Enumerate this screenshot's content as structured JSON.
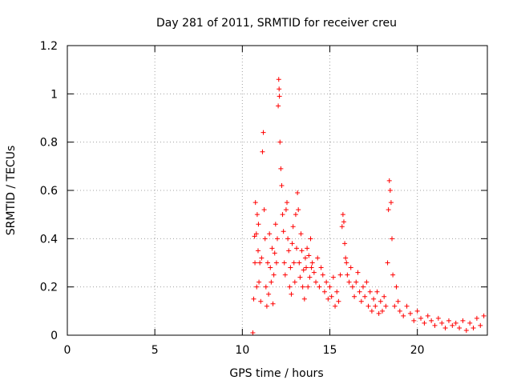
{
  "chart_data": {
    "type": "scatter",
    "title": "Day 281 of 2011, SRMTID for receiver creu",
    "xlabel": "GPS time / hours",
    "ylabel": "SRMTID / TECUs",
    "xlim": [
      0,
      24
    ],
    "ylim": [
      0,
      1.2
    ],
    "xticks": [
      0,
      5,
      10,
      15,
      20
    ],
    "xtick_labels": [
      "0",
      "5",
      "10",
      "15",
      "20"
    ],
    "yticks": [
      0,
      0.2,
      0.4,
      0.6,
      0.8,
      1,
      1.2
    ],
    "ytick_labels": [
      "0",
      "0.2",
      "0.4",
      "0.6",
      "0.8",
      "1",
      "1.2"
    ],
    "grid": true,
    "marker": "+",
    "series": [
      {
        "name": "SRMTID",
        "color": "#ff0000",
        "x": [
          10.6,
          10.65,
          10.7,
          10.72,
          10.75,
          10.8,
          10.82,
          10.85,
          10.9,
          10.92,
          10.95,
          11.0,
          11.05,
          11.1,
          11.15,
          11.2,
          11.25,
          11.3,
          11.35,
          11.4,
          11.45,
          11.5,
          11.55,
          11.6,
          11.65,
          11.7,
          11.75,
          11.8,
          11.85,
          11.9,
          11.95,
          12.0,
          12.05,
          12.08,
          12.1,
          12.12,
          12.15,
          12.2,
          12.25,
          12.3,
          12.35,
          12.4,
          12.45,
          12.5,
          12.55,
          12.6,
          12.65,
          12.7,
          12.75,
          12.8,
          12.85,
          12.9,
          12.95,
          13.0,
          13.05,
          13.1,
          13.15,
          13.2,
          13.25,
          13.3,
          13.35,
          13.4,
          13.45,
          13.5,
          13.55,
          13.6,
          13.65,
          13.7,
          13.75,
          13.8,
          13.85,
          13.9,
          13.95,
          14.0,
          14.1,
          14.2,
          14.3,
          14.4,
          14.5,
          14.6,
          14.7,
          14.8,
          14.9,
          15.0,
          15.1,
          15.2,
          15.3,
          15.4,
          15.5,
          15.6,
          15.7,
          15.75,
          15.8,
          15.85,
          15.9,
          15.95,
          16.0,
          16.1,
          16.2,
          16.3,
          16.4,
          16.5,
          16.6,
          16.7,
          16.8,
          16.9,
          17.0,
          17.1,
          17.2,
          17.3,
          17.4,
          17.5,
          17.6,
          17.7,
          17.8,
          17.9,
          18.0,
          18.1,
          18.2,
          18.3,
          18.35,
          18.4,
          18.45,
          18.5,
          18.55,
          18.6,
          18.7,
          18.8,
          18.9,
          19.0,
          19.2,
          19.4,
          19.6,
          19.8,
          20.0,
          20.2,
          20.4,
          20.6,
          20.8,
          21.0,
          21.2,
          21.4,
          21.6,
          21.8,
          22.0,
          22.2,
          22.4,
          22.6,
          22.8,
          23.0,
          23.2,
          23.4,
          23.6,
          23.8
        ],
        "y": [
          0.01,
          0.15,
          0.41,
          0.3,
          0.55,
          0.42,
          0.2,
          0.5,
          0.35,
          0.46,
          0.22,
          0.3,
          0.14,
          0.32,
          0.76,
          0.84,
          0.52,
          0.4,
          0.2,
          0.12,
          0.3,
          0.17,
          0.42,
          0.28,
          0.22,
          0.36,
          0.13,
          0.25,
          0.34,
          0.46,
          0.3,
          0.4,
          0.95,
          1.06,
          1.02,
          0.99,
          0.8,
          0.69,
          0.62,
          0.5,
          0.43,
          0.3,
          0.25,
          0.52,
          0.55,
          0.4,
          0.35,
          0.2,
          0.28,
          0.17,
          0.38,
          0.45,
          0.3,
          0.22,
          0.5,
          0.36,
          0.59,
          0.52,
          0.3,
          0.24,
          0.42,
          0.35,
          0.2,
          0.27,
          0.15,
          0.32,
          0.28,
          0.36,
          0.2,
          0.33,
          0.24,
          0.4,
          0.28,
          0.3,
          0.26,
          0.22,
          0.32,
          0.2,
          0.28,
          0.25,
          0.18,
          0.22,
          0.15,
          0.2,
          0.16,
          0.24,
          0.12,
          0.18,
          0.14,
          0.25,
          0.45,
          0.5,
          0.47,
          0.38,
          0.32,
          0.3,
          0.25,
          0.22,
          0.28,
          0.2,
          0.16,
          0.22,
          0.26,
          0.18,
          0.14,
          0.2,
          0.16,
          0.22,
          0.12,
          0.18,
          0.1,
          0.15,
          0.12,
          0.18,
          0.09,
          0.14,
          0.1,
          0.16,
          0.12,
          0.3,
          0.52,
          0.64,
          0.6,
          0.55,
          0.4,
          0.25,
          0.12,
          0.2,
          0.14,
          0.1,
          0.08,
          0.12,
          0.09,
          0.06,
          0.1,
          0.07,
          0.05,
          0.08,
          0.06,
          0.04,
          0.07,
          0.05,
          0.03,
          0.06,
          0.04,
          0.05,
          0.03,
          0.06,
          0.02,
          0.05,
          0.03,
          0.07,
          0.04,
          0.08
        ]
      }
    ]
  }
}
